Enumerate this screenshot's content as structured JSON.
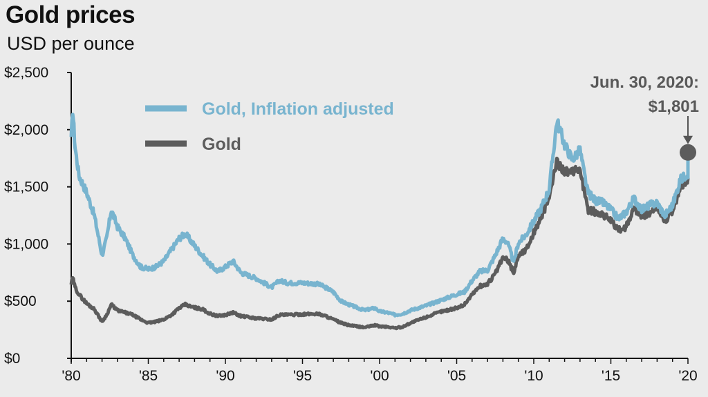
{
  "chart_data": {
    "type": "line",
    "title": "Gold prices",
    "subtitle": "USD per ounce",
    "ylim": [
      0,
      2500
    ],
    "xlim": [
      1980,
      2020.5
    ],
    "y_ticks": [
      0,
      500,
      1000,
      1500,
      2000,
      2500
    ],
    "y_tick_labels": [
      "$0",
      "$500",
      "$1,000",
      "$1,500",
      "$2,000",
      "$2,500"
    ],
    "x_ticks": [
      1980,
      1985,
      1990,
      1995,
      2000,
      2005,
      2010,
      2015,
      2020
    ],
    "x_tick_labels": [
      "'80",
      "'85",
      "'90",
      "'95",
      "'00",
      "'05",
      "'10",
      "'15",
      "'20"
    ],
    "legend_position": "top-left",
    "grid": false,
    "series": [
      {
        "name": "Gold, Inflation adjusted",
        "color": "#78b4cf",
        "x": [
          1980.0,
          1980.1,
          1980.25,
          1980.5,
          1981.0,
          1981.5,
          1982.0,
          1982.3,
          1982.6,
          1983.0,
          1983.5,
          1984.0,
          1984.5,
          1985.0,
          1985.5,
          1986.0,
          1986.5,
          1987.0,
          1987.4,
          1987.8,
          1988.5,
          1989.0,
          1989.5,
          1990.0,
          1990.5,
          1991.0,
          1992.0,
          1993.0,
          1993.5,
          1994.0,
          1995.0,
          1996.0,
          1996.5,
          1997.0,
          1997.5,
          1998.0,
          1999.0,
          1999.7,
          2000.0,
          2000.5,
          2001.0,
          2001.5,
          2002.0,
          2003.0,
          2004.0,
          2005.0,
          2005.5,
          2006.0,
          2006.5,
          2007.0,
          2007.5,
          2008.0,
          2008.3,
          2008.7,
          2009.0,
          2009.5,
          2010.0,
          2010.5,
          2011.0,
          2011.5,
          2012.0,
          2012.5,
          2013.0,
          2013.5,
          2014.0,
          2014.5,
          2015.0,
          2015.5,
          2016.0,
          2016.5,
          2017.0,
          2017.5,
          2018.0,
          2018.5,
          2019.0,
          2019.5,
          2020.0,
          2020.5
        ],
        "values": [
          1900,
          2180,
          1850,
          1600,
          1450,
          1250,
          900,
          1050,
          1300,
          1150,
          1050,
          900,
          800,
          780,
          800,
          850,
          950,
          1050,
          1090,
          1020,
          900,
          820,
          760,
          800,
          850,
          750,
          700,
          620,
          680,
          660,
          660,
          650,
          620,
          580,
          500,
          470,
          420,
          440,
          410,
          400,
          380,
          390,
          420,
          460,
          510,
          560,
          580,
          680,
          760,
          770,
          900,
          1050,
          1010,
          840,
          1010,
          1080,
          1200,
          1320,
          1480,
          2080,
          1870,
          1740,
          1820,
          1450,
          1380,
          1360,
          1300,
          1220,
          1280,
          1400,
          1300,
          1340,
          1360,
          1250,
          1340,
          1560,
          1620,
          1801
        ]
      },
      {
        "name": "Gold",
        "color": "#5c5c5c",
        "x": [
          1980.0,
          1980.1,
          1980.25,
          1980.5,
          1981.0,
          1981.5,
          1982.0,
          1982.3,
          1982.6,
          1983.0,
          1983.5,
          1984.0,
          1984.5,
          1985.0,
          1985.5,
          1986.0,
          1986.5,
          1987.0,
          1987.4,
          1987.8,
          1988.5,
          1989.0,
          1989.5,
          1990.0,
          1990.5,
          1991.0,
          1992.0,
          1993.0,
          1993.5,
          1994.0,
          1995.0,
          1996.0,
          1996.5,
          1997.0,
          1997.5,
          1998.0,
          1999.0,
          1999.7,
          2000.0,
          2000.5,
          2001.0,
          2001.5,
          2002.0,
          2003.0,
          2004.0,
          2005.0,
          2005.5,
          2006.0,
          2006.5,
          2007.0,
          2007.5,
          2008.0,
          2008.3,
          2008.7,
          2009.0,
          2009.5,
          2010.0,
          2010.5,
          2011.0,
          2011.5,
          2012.0,
          2012.5,
          2013.0,
          2013.5,
          2014.0,
          2014.5,
          2015.0,
          2015.5,
          2016.0,
          2016.5,
          2017.0,
          2017.5,
          2018.0,
          2018.5,
          2019.0,
          2019.5,
          2020.0,
          2020.5
        ],
        "values": [
          650,
          700,
          620,
          560,
          480,
          430,
          320,
          380,
          470,
          420,
          400,
          380,
          340,
          310,
          320,
          340,
          380,
          440,
          470,
          450,
          430,
          390,
          370,
          380,
          400,
          370,
          350,
          340,
          380,
          380,
          385,
          390,
          370,
          340,
          310,
          290,
          270,
          290,
          280,
          275,
          265,
          275,
          310,
          360,
          410,
          440,
          470,
          560,
          630,
          650,
          740,
          880,
          860,
          750,
          900,
          950,
          1100,
          1240,
          1410,
          1720,
          1640,
          1620,
          1660,
          1300,
          1280,
          1260,
          1200,
          1120,
          1150,
          1320,
          1240,
          1270,
          1320,
          1200,
          1290,
          1480,
          1580,
          1801
        ]
      }
    ],
    "annotation": {
      "line1": "Jun. 30, 2020:",
      "line2": "$1,801",
      "x": 2020.0,
      "y": 1801
    }
  }
}
